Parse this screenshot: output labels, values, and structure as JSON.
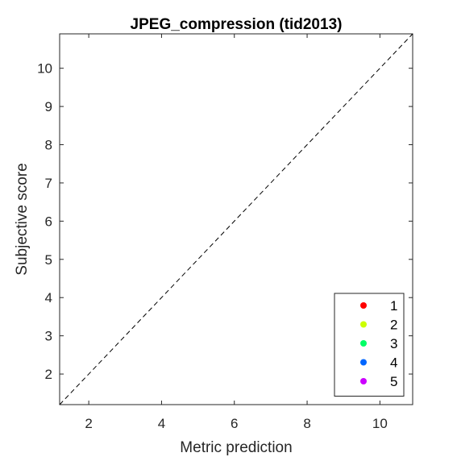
{
  "chart_data": {
    "type": "scatter",
    "title": "JPEG_compression (tid2013)",
    "xlabel": "Metric prediction",
    "ylabel": "Subjective score",
    "xlim": [
      1.2,
      10.9
    ],
    "ylim": [
      1.2,
      10.9
    ],
    "xticks": [
      "2",
      "4",
      "6",
      "8",
      "10"
    ],
    "yticks": [
      "2",
      "3",
      "4",
      "5",
      "6",
      "7",
      "8",
      "9",
      "10"
    ],
    "grid": false,
    "legend_position": "bottom-right",
    "reference_line": "y = x (dashed)",
    "series": [
      {
        "name": "1",
        "color": "#ff0000",
        "points": []
      },
      {
        "name": "2",
        "color": "#ccff00",
        "points": []
      },
      {
        "name": "3",
        "color": "#00ff66",
        "points": []
      },
      {
        "name": "4",
        "color": "#0066ff",
        "points": []
      },
      {
        "name": "5",
        "color": "#cc00ff",
        "points": []
      }
    ]
  }
}
